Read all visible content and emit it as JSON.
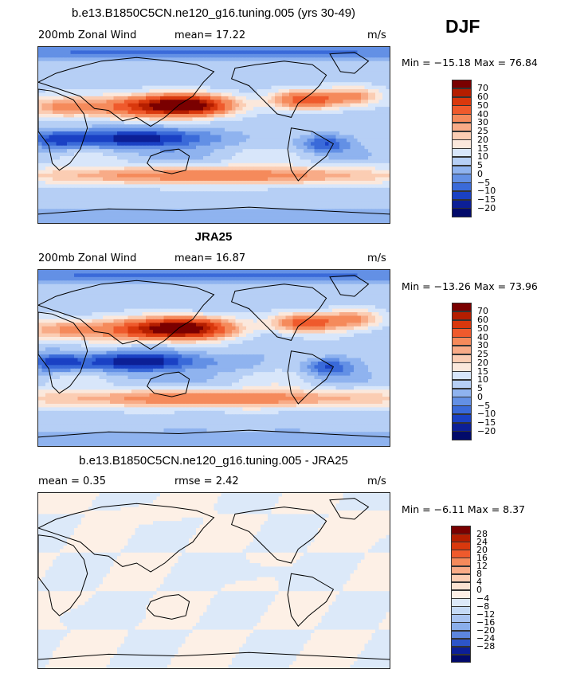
{
  "season": "DJF",
  "panels": [
    {
      "title": "b.e13.B1850C5CN.ne120_g16.tuning.005 (yrs 30-49)",
      "left_label": "200mb Zonal Wind",
      "mid_label": "mean=   17.22",
      "units": "m/s",
      "minmax": "Min = −15.18 Max =  76.84",
      "colorbar": [
        "70",
        "60",
        "50",
        "40",
        "30",
        "25",
        "20",
        "15",
        "10",
        "5",
        "0",
        "−5",
        "−10",
        "−15",
        "−20"
      ],
      "field": "model"
    },
    {
      "title": "JRA25",
      "left_label": "200mb Zonal Wind",
      "mid_label": "mean=   16.87",
      "units": "m/s",
      "minmax": "Min = −13.26 Max =  73.96",
      "colorbar": [
        "70",
        "60",
        "50",
        "40",
        "30",
        "25",
        "20",
        "15",
        "10",
        "5",
        "0",
        "−5",
        "−10",
        "−15",
        "−20"
      ],
      "field": "obs"
    },
    {
      "title": "b.e13.B1850C5CN.ne120_g16.tuning.005 - JRA25",
      "left_label": "mean =    0.35",
      "mid_label": "rmse =    2.42",
      "units": "m/s",
      "minmax": "Min =  −6.11 Max =   8.37",
      "colorbar": [
        "28",
        "24",
        "20",
        "16",
        "12",
        "8",
        "4",
        "0",
        "−4",
        "−8",
        "−12",
        "−16",
        "−20",
        "−24",
        "−28"
      ],
      "field": "diff"
    }
  ],
  "colors": {
    "palette": [
      "#7a0000",
      "#b51e00",
      "#d9380d",
      "#ef5a2c",
      "#f58a5b",
      "#f8ab87",
      "#fbcdb3",
      "#fbe8dc",
      "#d8e6fa",
      "#b6cff5",
      "#8fb3ef",
      "#6390e5",
      "#3a6ad9",
      "#1a41c4",
      "#0c1f96",
      "#020a6a"
    ],
    "diff_palette": [
      "#7a0000",
      "#b51e00",
      "#d9380d",
      "#ef5a2c",
      "#f58a5b",
      "#f8ab87",
      "#fbcdb3",
      "#fbe2d1",
      "#fdf0e6",
      "#dce9f9",
      "#c5daf6",
      "#a9c4f1",
      "#8aaeeb",
      "#5d86de",
      "#2d55c9",
      "#0c1f96",
      "#020a6a"
    ]
  }
}
